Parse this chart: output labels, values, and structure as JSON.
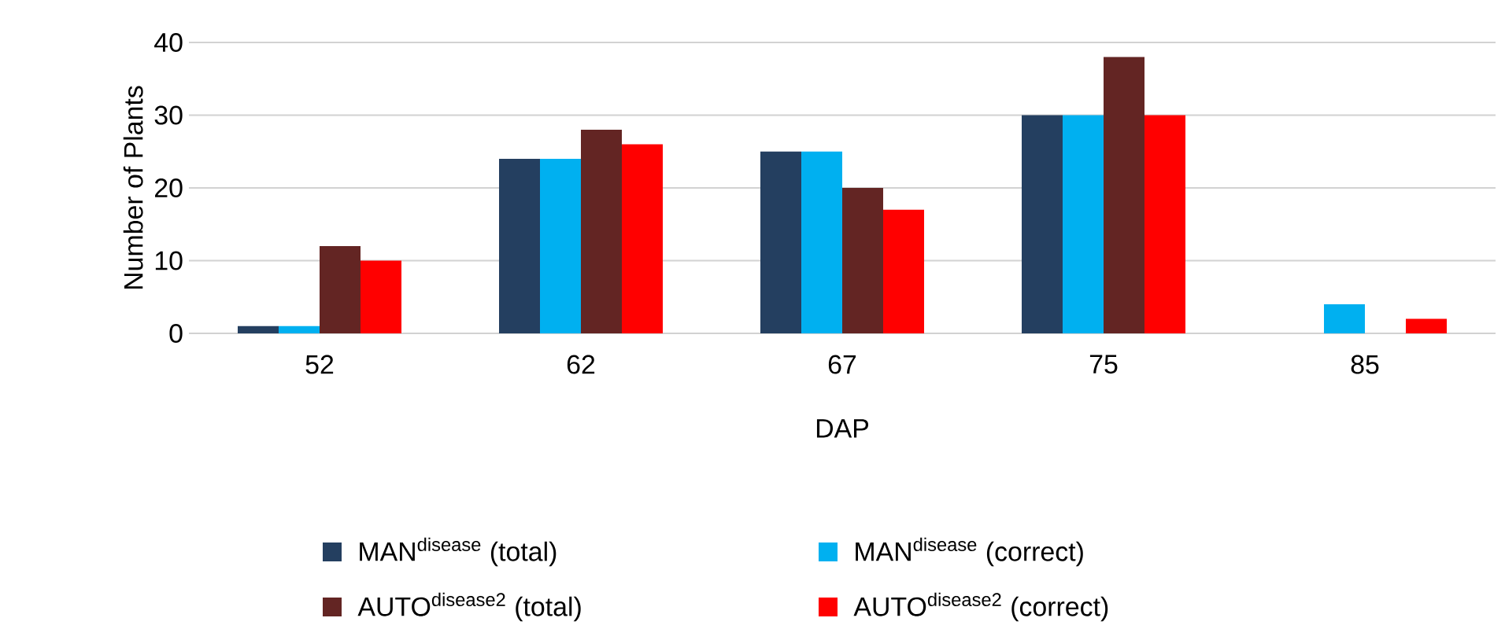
{
  "chart_data": {
    "type": "bar",
    "xlabel": "DAP",
    "ylabel": "Number of Plants",
    "categories": [
      "52",
      "62",
      "67",
      "75",
      "85"
    ],
    "series": [
      {
        "name": "MAN$^{disease}$ (total)",
        "color": "#243f60",
        "values": [
          1,
          24,
          25,
          30,
          0
        ]
      },
      {
        "name": "MAN$^{disease}$ (correct)",
        "color": "#00b0f0",
        "values": [
          1,
          24,
          25,
          30,
          4
        ]
      },
      {
        "name": "AUTO$^{disease2}$ (total)",
        "color": "#632523",
        "values": [
          12,
          28,
          20,
          38,
          0
        ]
      },
      {
        "name": "AUTO$^{disease2}$  (correct)",
        "color": "#ff0000",
        "values": [
          10,
          26,
          17,
          30,
          2
        ]
      }
    ],
    "ylim": [
      0,
      40
    ],
    "yticks": [
      0,
      10,
      20,
      30,
      40
    ],
    "grid": "y",
    "legend": "bottom"
  }
}
